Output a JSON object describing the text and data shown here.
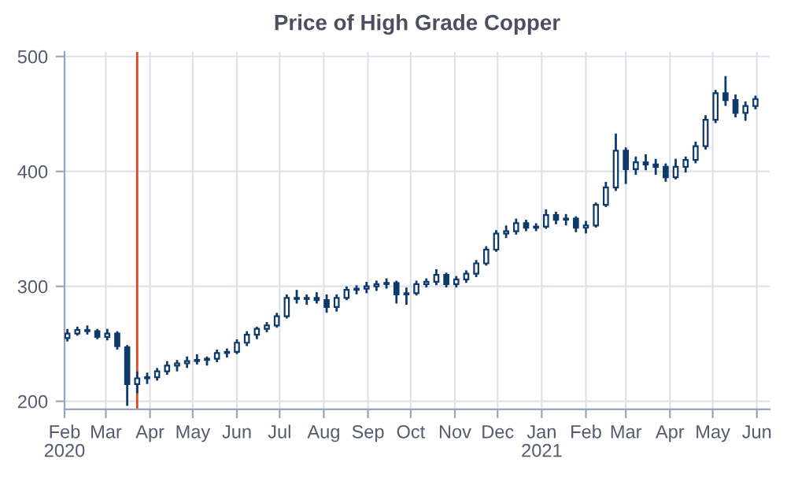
{
  "chart_data": {
    "type": "candlestick",
    "title": "Price of High Grade Copper",
    "color": "#0d3a6b",
    "x": [
      "2020-02-03",
      "2020-02-10",
      "2020-02-17",
      "2020-02-24",
      "2020-03-02",
      "2020-03-09",
      "2020-03-16",
      "2020-03-23",
      "2020-03-30",
      "2020-04-06",
      "2020-04-13",
      "2020-04-20",
      "2020-04-27",
      "2020-05-04",
      "2020-05-11",
      "2020-05-18",
      "2020-05-25",
      "2020-06-01",
      "2020-06-08",
      "2020-06-15",
      "2020-06-22",
      "2020-06-29",
      "2020-07-06",
      "2020-07-13",
      "2020-07-20",
      "2020-07-27",
      "2020-08-03",
      "2020-08-10",
      "2020-08-17",
      "2020-08-24",
      "2020-08-31",
      "2020-09-07",
      "2020-09-14",
      "2020-09-21",
      "2020-09-28",
      "2020-10-05",
      "2020-10-12",
      "2020-10-19",
      "2020-10-26",
      "2020-11-02",
      "2020-11-09",
      "2020-11-16",
      "2020-11-23",
      "2020-11-30",
      "2020-12-07",
      "2020-12-14",
      "2020-12-21",
      "2020-12-28",
      "2021-01-04",
      "2021-01-11",
      "2021-01-18",
      "2021-01-25",
      "2021-02-01",
      "2021-02-08",
      "2021-02-15",
      "2021-02-22",
      "2021-03-01",
      "2021-03-08",
      "2021-03-15",
      "2021-03-22",
      "2021-03-29",
      "2021-04-05",
      "2021-04-12",
      "2021-04-19",
      "2021-04-26",
      "2021-05-03",
      "2021-05-10",
      "2021-05-17",
      "2021-05-24",
      "2021-05-31"
    ],
    "ohlc": [
      [
        255,
        262,
        253,
        259
      ],
      [
        259,
        264,
        258,
        262
      ],
      [
        262,
        265,
        259,
        261
      ],
      [
        261,
        262,
        255,
        256
      ],
      [
        256,
        262,
        254,
        259
      ],
      [
        259,
        260,
        246,
        248
      ],
      [
        247,
        248,
        197,
        215
      ],
      [
        215,
        225,
        208,
        220
      ],
      [
        220,
        224,
        216,
        221
      ],
      [
        221,
        228,
        219,
        226
      ],
      [
        226,
        234,
        224,
        231
      ],
      [
        231,
        235,
        227,
        233
      ],
      [
        233,
        238,
        230,
        235
      ],
      [
        235,
        240,
        233,
        236
      ],
      [
        236,
        238,
        232,
        237
      ],
      [
        237,
        244,
        235,
        242
      ],
      [
        242,
        245,
        239,
        243
      ],
      [
        243,
        253,
        242,
        251
      ],
      [
        251,
        260,
        249,
        258
      ],
      [
        258,
        264,
        255,
        263
      ],
      [
        263,
        268,
        261,
        266
      ],
      [
        266,
        276,
        265,
        274
      ],
      [
        274,
        292,
        273,
        290
      ],
      [
        290,
        296,
        286,
        289
      ],
      [
        289,
        292,
        285,
        290
      ],
      [
        290,
        294,
        286,
        288
      ],
      [
        288,
        292,
        278,
        282
      ],
      [
        282,
        292,
        279,
        290
      ],
      [
        290,
        299,
        289,
        297
      ],
      [
        297,
        300,
        294,
        298
      ],
      [
        298,
        303,
        295,
        300
      ],
      [
        300,
        304,
        297,
        302
      ],
      [
        302,
        306,
        299,
        303
      ],
      [
        303,
        304,
        286,
        293
      ],
      [
        293,
        298,
        285,
        294
      ],
      [
        294,
        304,
        293,
        302
      ],
      [
        302,
        306,
        300,
        304
      ],
      [
        304,
        314,
        302,
        310
      ],
      [
        310,
        311,
        300,
        302
      ],
      [
        302,
        308,
        300,
        306
      ],
      [
        306,
        313,
        304,
        311
      ],
      [
        311,
        322,
        309,
        320
      ],
      [
        320,
        334,
        319,
        332
      ],
      [
        332,
        348,
        331,
        346
      ],
      [
        346,
        352,
        343,
        348
      ],
      [
        348,
        358,
        346,
        355
      ],
      [
        355,
        357,
        349,
        351
      ],
      [
        351,
        354,
        349,
        352
      ],
      [
        352,
        366,
        351,
        362
      ],
      [
        362,
        364,
        355,
        358
      ],
      [
        358,
        362,
        354,
        359
      ],
      [
        359,
        360,
        348,
        351
      ],
      [
        351,
        356,
        347,
        353
      ],
      [
        353,
        372,
        352,
        371
      ],
      [
        371,
        390,
        370,
        386
      ],
      [
        386,
        432,
        384,
        418
      ],
      [
        418,
        420,
        390,
        402
      ],
      [
        402,
        412,
        398,
        408
      ],
      [
        408,
        414,
        402,
        406
      ],
      [
        406,
        410,
        398,
        404
      ],
      [
        404,
        406,
        392,
        395
      ],
      [
        395,
        410,
        394,
        404
      ],
      [
        404,
        412,
        400,
        410
      ],
      [
        410,
        425,
        408,
        422
      ],
      [
        422,
        448,
        420,
        445
      ],
      [
        445,
        470,
        443,
        468
      ],
      [
        468,
        482,
        458,
        462
      ],
      [
        462,
        466,
        448,
        451
      ],
      [
        451,
        460,
        445,
        457
      ],
      [
        457,
        465,
        455,
        463
      ]
    ],
    "xlim": [
      "2020-02-01",
      "2021-06-10"
    ],
    "xticks": [
      {
        "value": "2020-02-01",
        "label": "Feb\n2020"
      },
      {
        "value": "2020-03-01",
        "label": "Mar"
      },
      {
        "value": "2020-04-01",
        "label": "Apr"
      },
      {
        "value": "2020-05-01",
        "label": "May"
      },
      {
        "value": "2020-06-01",
        "label": "Jun"
      },
      {
        "value": "2020-07-01",
        "label": "Jul"
      },
      {
        "value": "2020-08-01",
        "label": "Aug"
      },
      {
        "value": "2020-09-01",
        "label": "Sep"
      },
      {
        "value": "2020-10-01",
        "label": "Oct"
      },
      {
        "value": "2020-11-01",
        "label": "Nov"
      },
      {
        "value": "2020-12-01",
        "label": "Dec"
      },
      {
        "value": "2021-01-01",
        "label": "Jan\n2021"
      },
      {
        "value": "2021-02-01",
        "label": "Feb"
      },
      {
        "value": "2021-03-01",
        "label": "Mar"
      },
      {
        "value": "2021-04-01",
        "label": "Apr"
      },
      {
        "value": "2021-05-01",
        "label": "May"
      },
      {
        "value": "2021-06-01",
        "label": "Jun"
      }
    ],
    "ylim": [
      193,
      504
    ],
    "yticks": [
      200,
      300,
      400,
      500
    ],
    "grid": true,
    "ref_lines": [
      {
        "axis": "x",
        "value": "2020-03-23",
        "color": "#d9471f"
      }
    ]
  }
}
